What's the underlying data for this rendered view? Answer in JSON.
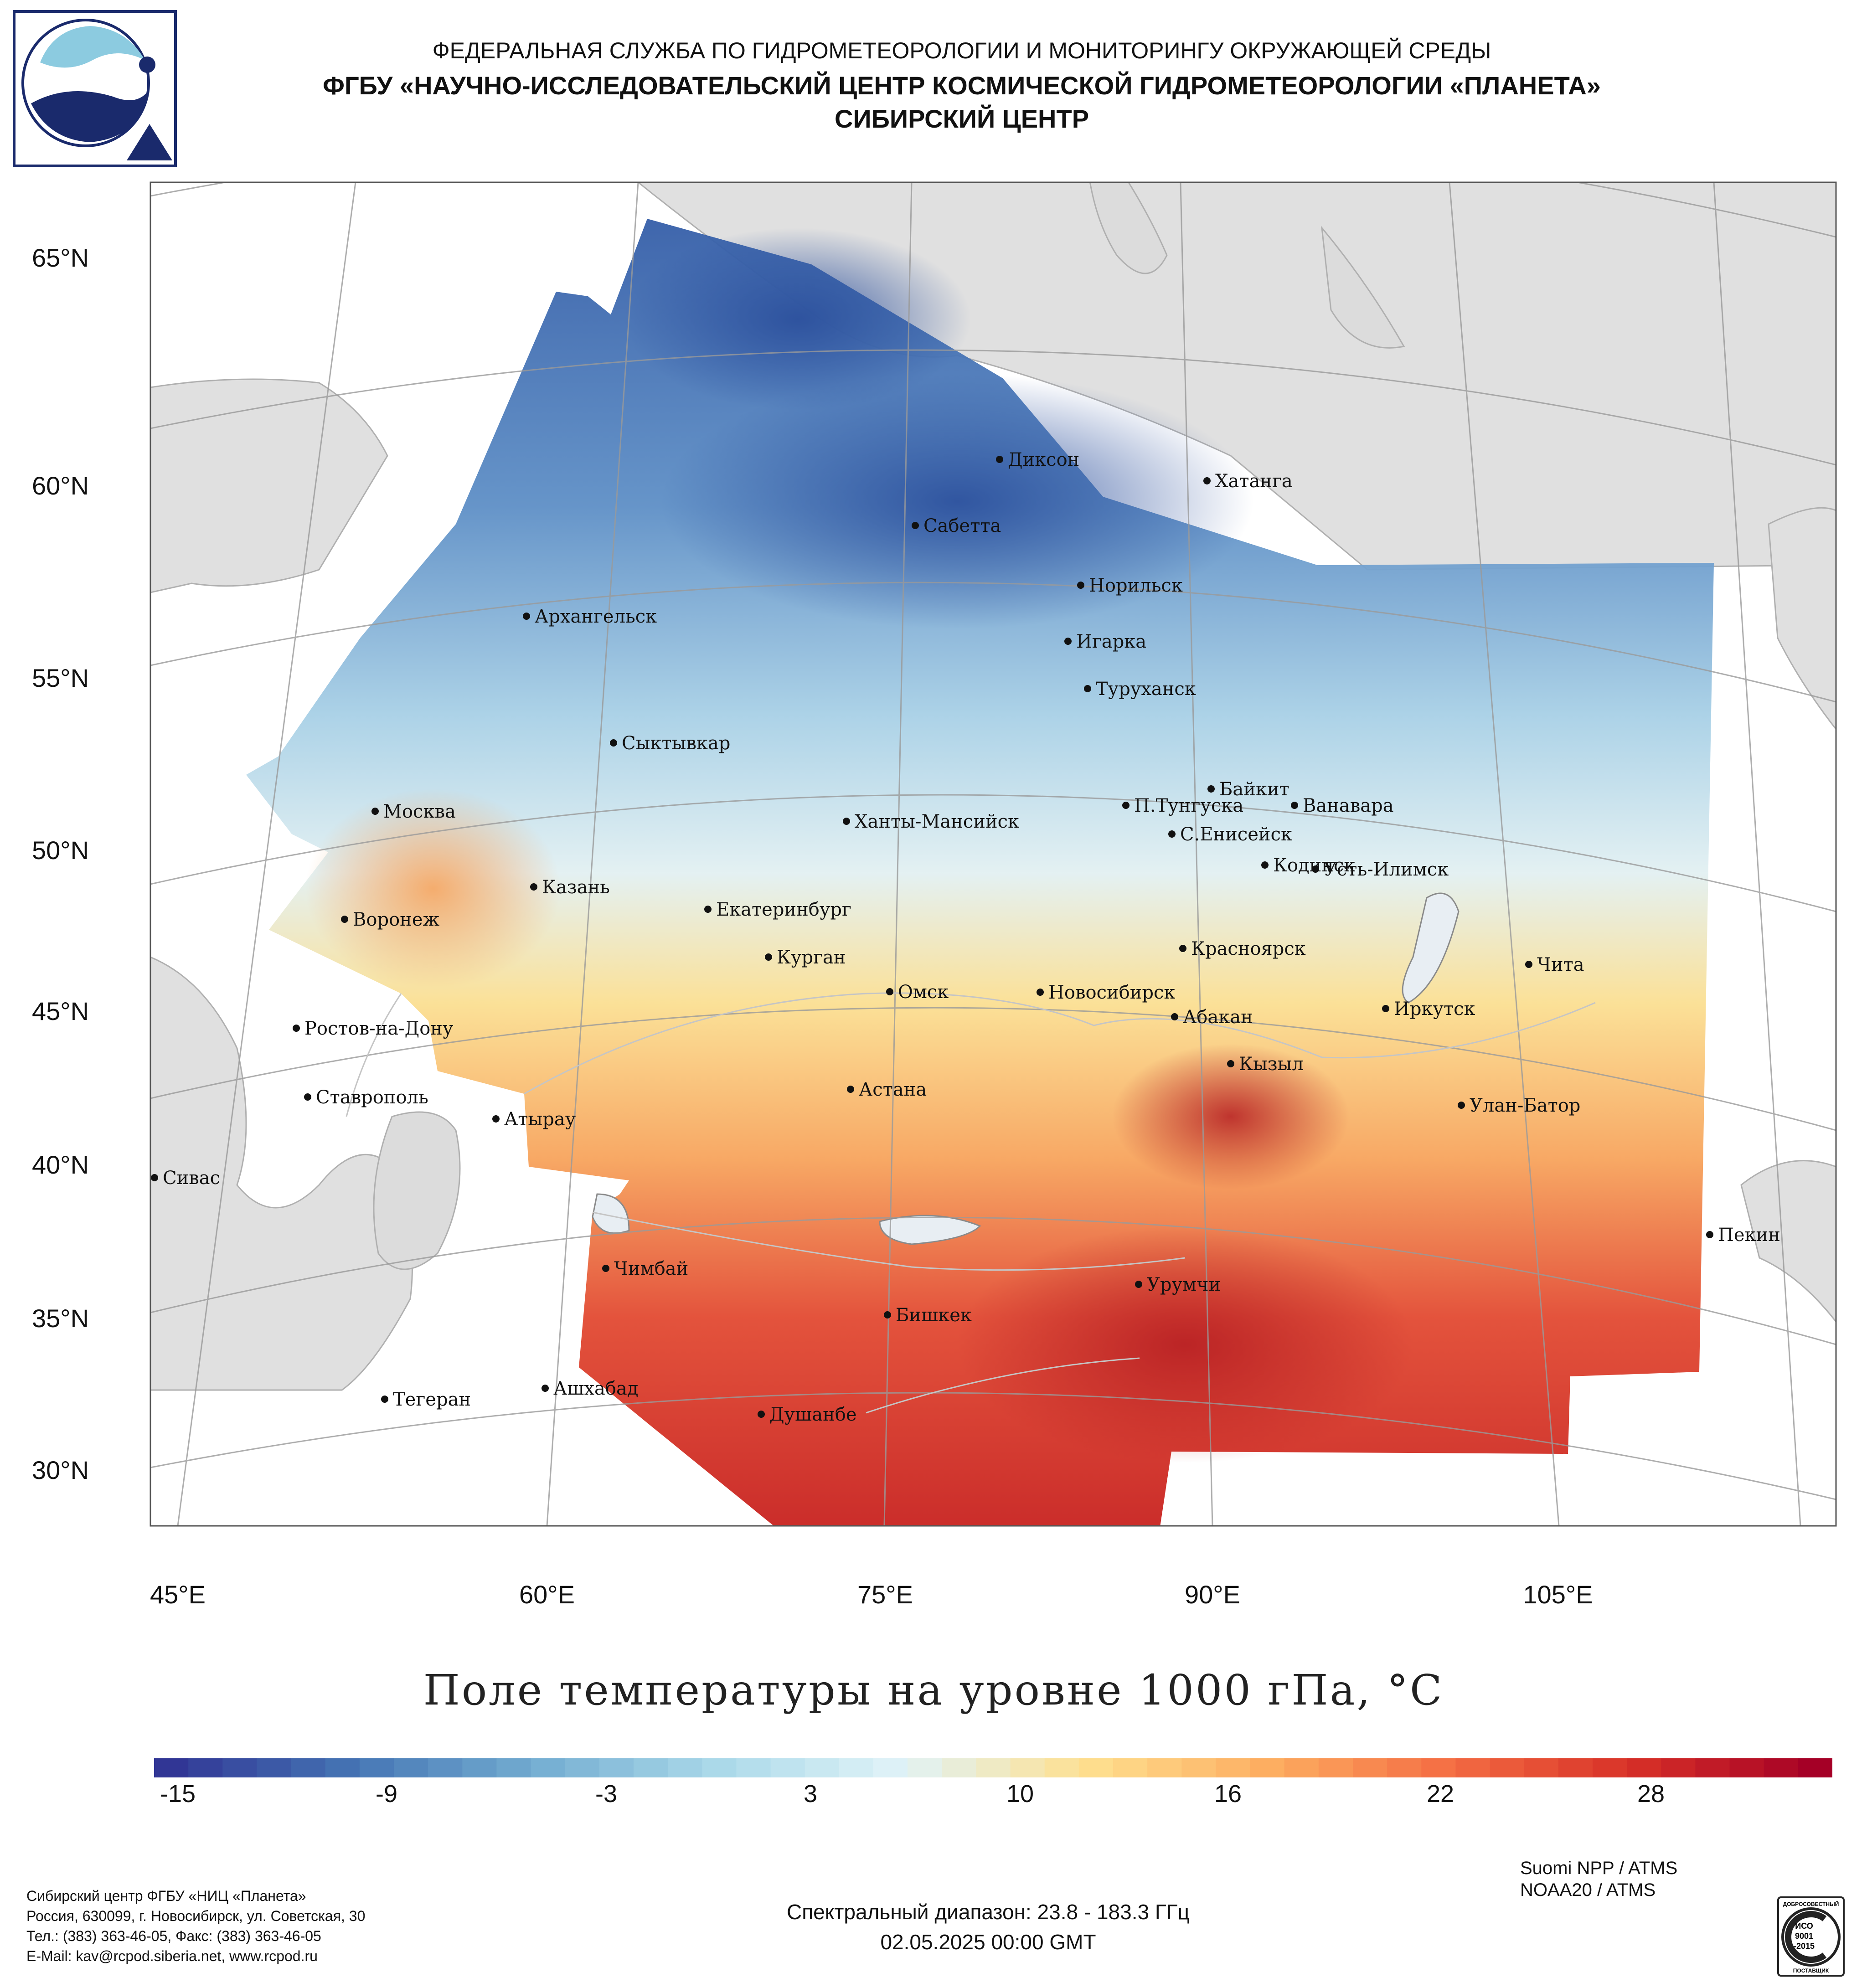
{
  "header": {
    "line1": "ФЕДЕРАЛЬНАЯ СЛУЖБА ПО ГИДРОМЕТЕОРОЛОГИИ И МОНИТОРИНГУ ОКРУЖАЮЩЕЙ СРЕДЫ",
    "line2": "ФГБУ «НАУЧНО-ИССЛЕДОВАТЕЛЬСКИЙ ЦЕНТР КОСМИЧЕСКОЙ ГИДРОМЕТЕОРОЛОГИИ «ПЛАНЕТА»",
    "line3": "СИБИРСКИЙ ЦЕНТР"
  },
  "logo_icon": "planeta-logo-icon",
  "map": {
    "lat_labels": [
      "65°N",
      "60°N",
      "55°N",
      "50°N",
      "45°N",
      "40°N",
      "35°N",
      "30°N"
    ],
    "lon_labels": [
      "45°E",
      "60°E",
      "75°E",
      "90°E",
      "105°E"
    ],
    "cities": [
      "Диксон",
      "Хатанга",
      "Сабетта",
      "Норильск",
      "Архангельск",
      "Игарка",
      "Туруханск",
      "Сыктывкар",
      "Байкит",
      "Москва",
      "П.Тунгуска",
      "Ванавара",
      "Ханты-Мансийск",
      "С.Енисейск",
      "Кодинск",
      "Усть-Илимск",
      "Казань",
      "Екатеринбург",
      "Воронеж",
      "Красноярск",
      "Курган",
      "Чита",
      "Омск",
      "Новосибирск",
      "Иркутск",
      "Абакан",
      "Ростов-на-Дону",
      "Кызыл",
      "Астана",
      "Ставрополь",
      "Улан-Батор",
      "Атырау",
      "Сивас",
      "Пекин",
      "Чимбай",
      "Урумчи",
      "Бишкек",
      "Ашхабад",
      "Тегеран",
      "Душанбе"
    ],
    "colors": {
      "land": "#e0e0e0",
      "water": "#ffffff",
      "border": "#b8b8b8",
      "grid": "#9a9a9a"
    }
  },
  "title": "Поле температуры на уровне 1000 гПа, °C",
  "colorbar": {
    "ticks": [
      "-15",
      "-9",
      "-3",
      "3",
      "10",
      "16",
      "22",
      "28"
    ],
    "min": -18,
    "max": 31,
    "colors": [
      "#313695",
      "#4575b4",
      "#74add1",
      "#abd9e9",
      "#e0f3f8",
      "#fee090",
      "#fdae61",
      "#f46d43",
      "#d73027",
      "#a50026"
    ]
  },
  "footer": {
    "contact": [
      "Сибирский центр ФГБУ «НИЦ «Планета»",
      "Россия, 630099, г. Новосибирск, ул. Советская, 30",
      "Тел.: (383) 363-46-05, Факс: (383) 363-46-05",
      "E-Mail: kav@rcpod.siberia.net, www.rcpod.ru"
    ],
    "satellites": [
      "Suomi NPP / ATMS",
      "NOAA20 / ATMS"
    ],
    "spectral": "Спектральный диапазон: 23.8 - 183.3 ГГц",
    "datetime": "02.05.2025 00:00 GMT",
    "iso_badge": [
      "ДОБРОСОВЕСТНЫЙ",
      "ИСО",
      "9001",
      "-2015",
      "ПОСТАВЩИК"
    ]
  }
}
